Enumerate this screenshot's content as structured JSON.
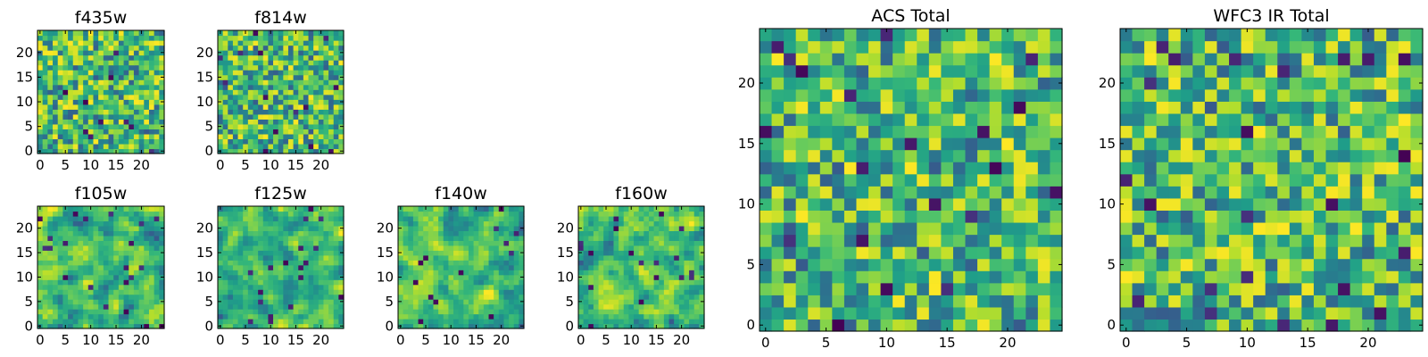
{
  "colors": {
    "colormap": "viridis",
    "axes_frame": "#000000",
    "background": "#ffffff"
  },
  "chart_data": [
    {
      "type": "heatmap",
      "title": "f435w",
      "xlabel": "",
      "ylabel": "",
      "grid_size": 25,
      "xlim": [
        -0.5,
        24.5
      ],
      "ylim": [
        -0.5,
        24.5
      ],
      "grid": false,
      "seed": 11,
      "smooth": 0,
      "x_ticks": [
        0,
        5,
        10,
        15,
        20
      ],
      "x_tick_labels": [
        "0",
        "5",
        "10",
        "15",
        "20"
      ],
      "y_ticks": [
        0,
        5,
        10,
        15,
        20
      ],
      "y_tick_labels": [
        "0",
        "5",
        "10",
        "15",
        "20"
      ]
    },
    {
      "type": "heatmap",
      "title": "f814w",
      "xlabel": "",
      "ylabel": "",
      "grid_size": 25,
      "xlim": [
        -0.5,
        24.5
      ],
      "ylim": [
        -0.5,
        24.5
      ],
      "grid": false,
      "seed": 23,
      "smooth": 0,
      "x_ticks": [
        0,
        5,
        10,
        15,
        20
      ],
      "x_tick_labels": [
        "0",
        "5",
        "10",
        "15",
        "20"
      ],
      "y_ticks": [
        0,
        5,
        10,
        15,
        20
      ],
      "y_tick_labels": [
        "0",
        "5",
        "10",
        "15",
        "20"
      ]
    },
    {
      "type": "heatmap",
      "title": "f105w",
      "xlabel": "",
      "ylabel": "",
      "grid_size": 25,
      "xlim": [
        -0.5,
        24.5
      ],
      "ylim": [
        -0.5,
        24.5
      ],
      "grid": false,
      "seed": 37,
      "smooth": 1,
      "x_ticks": [
        0,
        5,
        10,
        15,
        20
      ],
      "x_tick_labels": [
        "0",
        "5",
        "10",
        "15",
        "20"
      ],
      "y_ticks": [
        0,
        5,
        10,
        15,
        20
      ],
      "y_tick_labels": [
        "0",
        "5",
        "10",
        "15",
        "20"
      ]
    },
    {
      "type": "heatmap",
      "title": "f125w",
      "xlabel": "",
      "ylabel": "",
      "grid_size": 25,
      "xlim": [
        -0.5,
        24.5
      ],
      "ylim": [
        -0.5,
        24.5
      ],
      "grid": false,
      "seed": 41,
      "smooth": 1,
      "x_ticks": [
        0,
        5,
        10,
        15,
        20
      ],
      "x_tick_labels": [
        "0",
        "5",
        "10",
        "15",
        "20"
      ],
      "y_ticks": [
        0,
        5,
        10,
        15,
        20
      ],
      "y_tick_labels": [
        "0",
        "5",
        "10",
        "15",
        "20"
      ]
    },
    {
      "type": "heatmap",
      "title": "f140w",
      "xlabel": "",
      "ylabel": "",
      "grid_size": 25,
      "xlim": [
        -0.5,
        24.5
      ],
      "ylim": [
        -0.5,
        24.5
      ],
      "grid": false,
      "seed": 53,
      "smooth": 1,
      "x_ticks": [
        0,
        5,
        10,
        15,
        20
      ],
      "x_tick_labels": [
        "0",
        "5",
        "10",
        "15",
        "20"
      ],
      "y_ticks": [
        0,
        5,
        10,
        15,
        20
      ],
      "y_tick_labels": [
        "0",
        "5",
        "10",
        "15",
        "20"
      ]
    },
    {
      "type": "heatmap",
      "title": "f160w",
      "xlabel": "",
      "ylabel": "",
      "grid_size": 25,
      "xlim": [
        -0.5,
        24.5
      ],
      "ylim": [
        -0.5,
        24.5
      ],
      "grid": false,
      "seed": 67,
      "smooth": 1,
      "x_ticks": [
        0,
        5,
        10,
        15,
        20
      ],
      "x_tick_labels": [
        "0",
        "5",
        "10",
        "15",
        "20"
      ],
      "y_ticks": [
        0,
        5,
        10,
        15,
        20
      ],
      "y_tick_labels": [
        "0",
        "5",
        "10",
        "15",
        "20"
      ]
    },
    {
      "type": "heatmap",
      "title": "ACS Total",
      "xlabel": "",
      "ylabel": "",
      "grid_size": 25,
      "xlim": [
        -0.5,
        24.5
      ],
      "ylim": [
        -0.5,
        24.5
      ],
      "grid": false,
      "seed": 79,
      "smooth": 0,
      "x_ticks": [
        0,
        5,
        10,
        15,
        20
      ],
      "x_tick_labels": [
        "0",
        "5",
        "10",
        "15",
        "20"
      ],
      "y_ticks": [
        0,
        5,
        10,
        15,
        20
      ],
      "y_tick_labels": [
        "0",
        "5",
        "10",
        "15",
        "20"
      ]
    },
    {
      "type": "heatmap",
      "title": "WFC3 IR Total",
      "xlabel": "",
      "ylabel": "",
      "grid_size": 25,
      "xlim": [
        -0.5,
        24.5
      ],
      "ylim": [
        -0.5,
        24.5
      ],
      "grid": false,
      "seed": 97,
      "smooth": 0,
      "x_ticks": [
        0,
        5,
        10,
        15,
        20
      ],
      "x_tick_labels": [
        "0",
        "5",
        "10",
        "15",
        "20"
      ],
      "y_ticks": [
        0,
        5,
        10,
        15,
        20
      ],
      "y_tick_labels": [
        "0",
        "5",
        "10",
        "15",
        "20"
      ]
    }
  ]
}
